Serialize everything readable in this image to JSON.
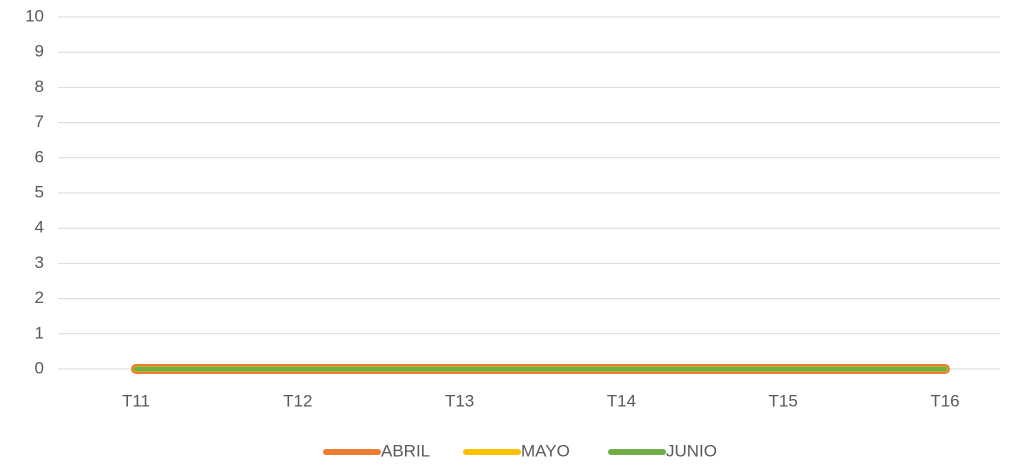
{
  "chart_data": {
    "type": "line",
    "categories": [
      "T11",
      "T12",
      "T13",
      "T14",
      "T15",
      "T16"
    ],
    "series": [
      {
        "name": "ABRIL",
        "color": "#ED7D31",
        "values": [
          0,
          0,
          0,
          0,
          0,
          0
        ]
      },
      {
        "name": "MAYO",
        "color": "#FFC000",
        "values": [
          0,
          0,
          0,
          0,
          0,
          0
        ]
      },
      {
        "name": "JUNIO",
        "color": "#70AD47",
        "values": [
          0,
          0,
          0,
          0,
          0,
          0
        ]
      }
    ],
    "ylim": [
      0,
      10
    ],
    "yticks": [
      0,
      1,
      2,
      3,
      4,
      5,
      6,
      7,
      8,
      9,
      10
    ],
    "grid": true,
    "legend": "bottom"
  }
}
